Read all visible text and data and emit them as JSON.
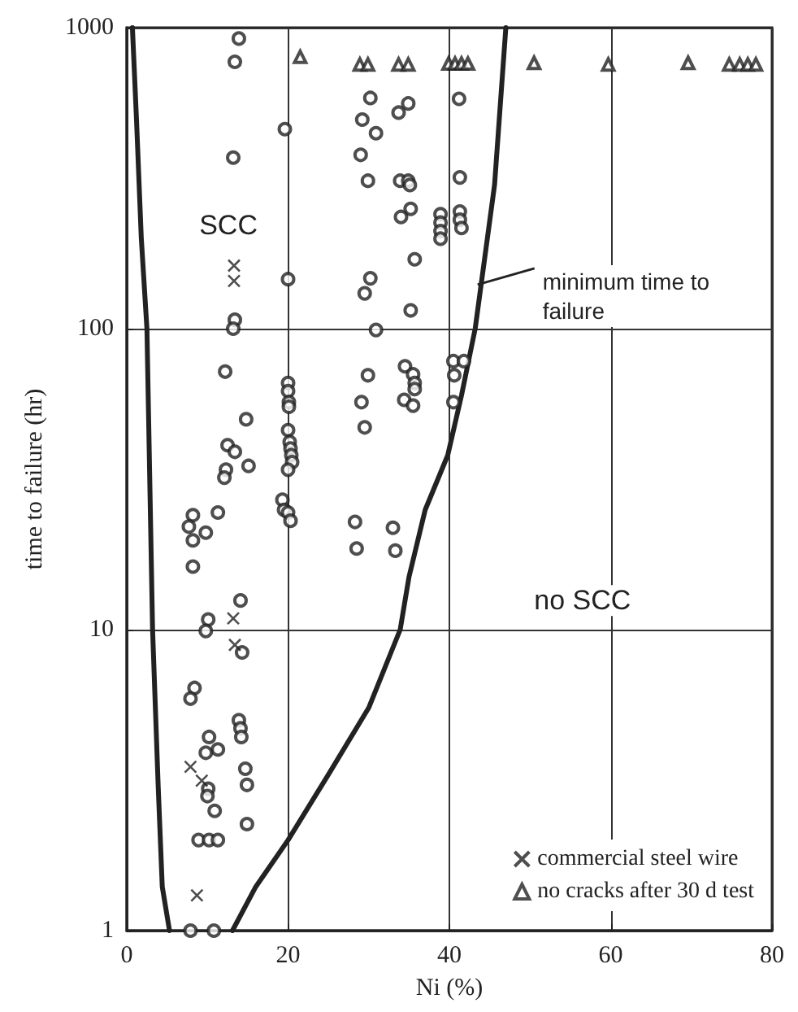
{
  "chart_data": {
    "type": "scatter",
    "xlabel": "Ni (%)",
    "ylabel": "time to failure (hr)",
    "xlim": [
      0,
      80
    ],
    "xticks": [
      0,
      20,
      40,
      60,
      80
    ],
    "ylim": [
      1,
      1000
    ],
    "yticks": [
      1,
      10,
      100,
      1000
    ],
    "log": "y",
    "grid": true,
    "legend": "bottom right",
    "annotations": [
      "SCC",
      "no SCC"
    ],
    "series": [
      {
        "color": "#222222",
        "marker": "circle",
        "x": [
          13.9,
          13.4,
          13.2,
          13.4,
          13.2,
          12.2,
          14.8,
          12.5,
          13.4,
          15.1,
          12.3,
          12.1,
          19.6,
          20,
          20,
          20,
          20.1,
          20.1,
          20,
          20.2,
          20.3,
          20.4,
          20.5,
          20,
          19.3,
          19.5,
          20,
          20.3,
          30.2,
          29.2,
          30.9,
          29,
          29.9,
          30.2,
          29.5,
          30.9,
          29.9,
          29.1,
          29.5,
          28.3,
          28.5,
          34.9,
          33.7,
          33.9,
          34.9,
          35.1,
          35.2,
          34,
          35.7,
          35.2,
          34.5,
          35.5,
          35.7,
          35.7,
          34.4,
          35.5,
          33,
          33.3,
          38.9,
          38.9,
          38.9,
          38.9,
          41.2,
          41.3,
          41.3,
          41.3,
          41.5,
          40.5,
          41.8,
          40.6,
          40.5,
          8.2,
          7.7,
          9.8,
          8.2,
          11.3,
          8.2,
          14.1,
          10.1,
          9.8,
          14.3,
          8.4,
          7.9,
          13.9,
          14.1,
          14.2,
          10.2,
          11.3,
          9.8,
          10.1,
          10.9,
          10,
          14.7,
          14.9,
          14.9,
          8.9,
          10.2,
          11.3,
          7.9,
          10.8
        ],
        "values": [
          920,
          770,
          370,
          107,
          100,
          72,
          50,
          41,
          39,
          35,
          34,
          32,
          460,
          146,
          66,
          62,
          57,
          55,
          46,
          42,
          40,
          38,
          36,
          34,
          27,
          25,
          24.5,
          23,
          584,
          495,
          446,
          378,
          310,
          147,
          131,
          99,
          70,
          57,
          47,
          22.8,
          18.6,
          560,
          522,
          310,
          310,
          300,
          250,
          235,
          170,
          115,
          75,
          70.5,
          66,
          63,
          58,
          55.5,
          21.8,
          18.3,
          240,
          225,
          211,
          199,
          580,
          318,
          245,
          230,
          216,
          78,
          78,
          70,
          57,
          24,
          22,
          21,
          19.8,
          24.5,
          16.2,
          12.5,
          10.8,
          9.9,
          8.4,
          6.4,
          5.9,
          5,
          4.7,
          4.4,
          4.4,
          4,
          3.9,
          2.96,
          2.5,
          2.8,
          3.45,
          3.05,
          2.26,
          2,
          2,
          2,
          1,
          1
        ]
      },
      {
        "name": "commercial steel wire",
        "color": "#222222",
        "marker": "cross",
        "x": [
          13.3,
          13.3,
          13.2,
          13.4,
          7.9,
          9.3,
          8.7
        ],
        "values": [
          162,
          144,
          10.9,
          8.9,
          3.5,
          3.15,
          1.31
        ]
      },
      {
        "name": "no cracks after 30 d test",
        "color": "#222222",
        "marker": "triangle",
        "x": [
          21.5,
          28.9,
          29.9,
          33.7,
          34.9,
          39.9,
          40.7,
          41.5,
          42.3,
          50.5,
          59.7,
          69.6,
          74.7,
          76,
          77,
          78
        ],
        "values": [
          800,
          755,
          755,
          755,
          755,
          760,
          760,
          760,
          760,
          764,
          755,
          764,
          755,
          755,
          755,
          755
        ]
      },
      {
        "name": "minimum time to failure",
        "type": "line",
        "color": "#222222",
        "marker": "none",
        "line_style": "solid",
        "x": [
          0.7,
          1.2,
          1.8,
          2.5,
          3.2,
          3.9,
          4.4,
          5.3,
          9,
          13.1,
          16,
          20,
          25,
          30,
          33.9,
          35,
          37,
          39.8,
          41.5,
          43.2,
          45.6,
          47
        ],
        "values": [
          1000,
          500,
          200,
          100,
          10,
          3,
          1.4,
          1,
          null,
          1,
          1.4,
          2,
          3.3,
          5.5,
          10,
          15,
          25,
          38,
          60,
          100,
          300,
          1000
        ]
      }
    ]
  }
}
